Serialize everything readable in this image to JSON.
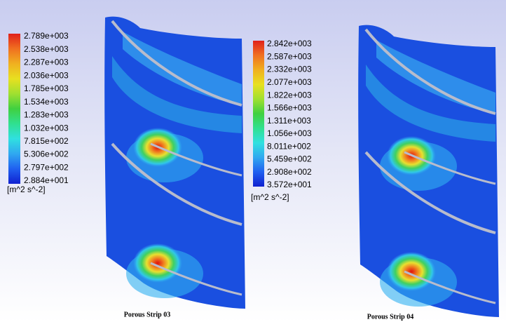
{
  "panels": [
    {
      "legend": {
        "labels": [
          "2.789e+003",
          "2.538e+003",
          "2.287e+003",
          "2.036e+003",
          "1.785e+003",
          "1.534e+003",
          "1.283e+003",
          "1.032e+003",
          "7.815e+002",
          "5.306e+002",
          "2.797e+002",
          "2.884e+001"
        ],
        "unit": "[m^2 s^-2]"
      },
      "caption": "Porous Strip 03"
    },
    {
      "legend": {
        "labels": [
          "2.842e+003",
          "2.587e+003",
          "2.332e+003",
          "2.077e+003",
          "1.822e+003",
          "1.566e+003",
          "1.311e+003",
          "1.056e+003",
          "8.011e+002",
          "5.459e+002",
          "2.908e+002",
          "3.572e+001"
        ],
        "unit": "[m^2 s^-2]"
      },
      "caption": "Porous Strip 04"
    }
  ]
}
